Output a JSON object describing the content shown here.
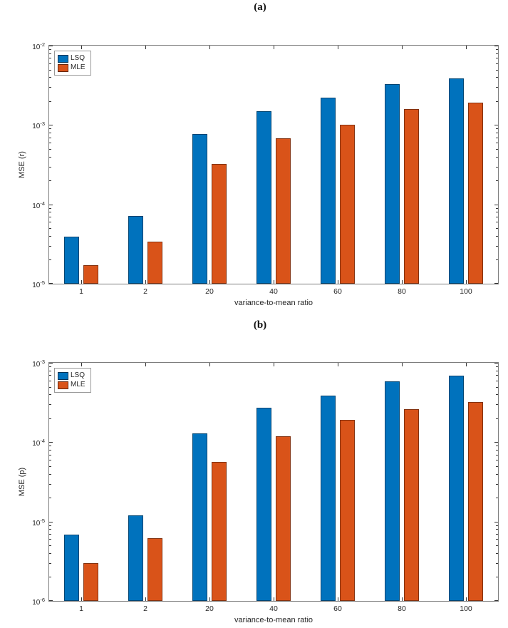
{
  "page": {
    "background": "#ffffff"
  },
  "colors": {
    "lsq": "#0072BD",
    "mle": "#D95319",
    "axis": "#7d7d7d",
    "tick": "#333333",
    "text": "#262626"
  },
  "chart_data": [
    {
      "type": "bar",
      "title": "(a)",
      "xlabel": "variance-to-mean ratio",
      "ylabel": "MSE (r)",
      "yscale": "log",
      "grid": false,
      "legend_position": "top-left",
      "categories": [
        "1",
        "2",
        "20",
        "40",
        "60",
        "80",
        "100"
      ],
      "series": [
        {
          "name": "LSQ",
          "color": "#0072BD",
          "values": [
            3.9e-05,
            7.1e-05,
            0.00077,
            0.0015,
            0.0022,
            0.0033,
            0.0039
          ]
        },
        {
          "name": "MLE",
          "color": "#D95319",
          "values": [
            1.7e-05,
            3.4e-05,
            0.00032,
            0.00068,
            0.001,
            0.0016,
            0.0019
          ]
        }
      ],
      "ylim": [
        1e-05,
        0.01
      ],
      "ylim_exponents": [
        -5,
        -2
      ],
      "ytick_exponents": [
        -2,
        -3,
        -4,
        -5
      ]
    },
    {
      "type": "bar",
      "title": "(b)",
      "xlabel": "variance-to-mean ratio",
      "ylabel": "MSE (p)",
      "yscale": "log",
      "grid": false,
      "legend_position": "top-left",
      "categories": [
        "1",
        "2",
        "20",
        "40",
        "60",
        "80",
        "100"
      ],
      "series": [
        {
          "name": "LSQ",
          "color": "#0072BD",
          "values": [
            6.8e-06,
            1.2e-05,
            0.00013,
            0.00027,
            0.00039,
            0.00058,
            0.00069
          ]
        },
        {
          "name": "MLE",
          "color": "#D95319",
          "values": [
            3e-06,
            6.2e-06,
            5.7e-05,
            0.00012,
            0.00019,
            0.00026,
            0.00032
          ]
        }
      ],
      "ylim": [
        1e-06,
        0.001
      ],
      "ylim_exponents": [
        -6,
        -3
      ],
      "ytick_exponents": [
        -3,
        -4,
        -5,
        -6
      ]
    }
  ]
}
